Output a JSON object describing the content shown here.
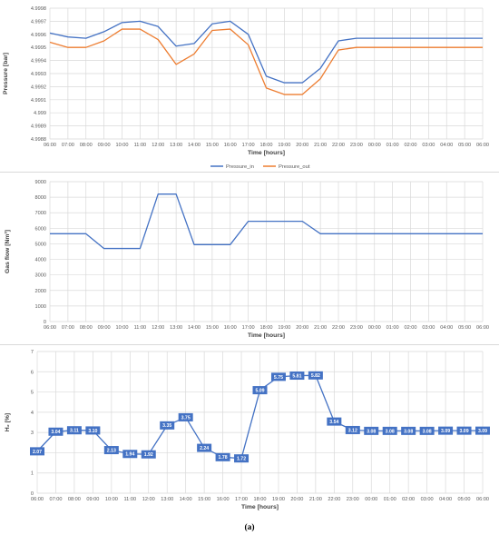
{
  "figure": {
    "caption": "(a)"
  },
  "x_ticks": [
    "06:00",
    "07:00",
    "08:00",
    "09:00",
    "10:00",
    "11:00",
    "12:00",
    "13:00",
    "14:00",
    "15:00",
    "16:00",
    "17:00",
    "18:00",
    "19:00",
    "20:00",
    "21:00",
    "22:00",
    "23:00",
    "00:00",
    "01:00",
    "02:00",
    "03:00",
    "04:00",
    "05:00",
    "06:00"
  ],
  "chart_data": [
    {
      "type": "line",
      "xlabel": "Time [hours]",
      "ylabel": "Pressure [bar]",
      "ylim": [
        4.9988,
        4.9998
      ],
      "yticks": [
        "4.9988",
        "4.9989",
        "4.999",
        "4.9991",
        "4.9992",
        "4.9993",
        "4.9994",
        "4.9995",
        "4.9996",
        "4.9997",
        "4.9998"
      ],
      "grid": true,
      "legend": "bottom",
      "x": [
        0,
        1,
        2,
        3,
        4,
        5,
        6,
        7,
        8,
        9,
        10,
        11,
        12,
        13,
        14,
        15,
        16,
        17,
        18,
        19,
        20,
        21,
        22,
        23,
        24
      ],
      "series": [
        {
          "name": "Pressure_in",
          "color": "#4472c4",
          "values": [
            4.99961,
            4.99958,
            4.99957,
            4.99962,
            4.99969,
            4.9997,
            4.99966,
            4.99951,
            4.99953,
            4.99968,
            4.9997,
            4.9996,
            4.99928,
            4.99923,
            4.99923,
            4.99934,
            4.99955,
            4.99957,
            4.99957,
            4.99957,
            4.99957,
            4.99957,
            4.99957,
            4.99957,
            4.99957
          ]
        },
        {
          "name": "Pressure_out",
          "color": "#ed7d31",
          "values": [
            4.99954,
            4.9995,
            4.9995,
            4.99955,
            4.99964,
            4.99964,
            4.99956,
            4.99937,
            4.99945,
            4.99963,
            4.99964,
            4.99952,
            4.99919,
            4.99914,
            4.99914,
            4.99926,
            4.99948,
            4.9995,
            4.9995,
            4.9995,
            4.9995,
            4.9995,
            4.9995,
            4.9995,
            4.9995
          ]
        }
      ]
    },
    {
      "type": "line",
      "xlabel": "Time [hours]",
      "ylabel": "Gas flow [Nm³]",
      "ylim": [
        0,
        9000
      ],
      "yticks": [
        "0",
        "1000",
        "2000",
        "3000",
        "4000",
        "5000",
        "6000",
        "7000",
        "8000",
        "9000"
      ],
      "grid": true,
      "x": [
        0,
        1,
        2,
        3,
        4,
        5,
        6,
        7,
        8,
        9,
        10,
        11,
        12,
        13,
        14,
        15,
        16,
        17,
        18,
        19,
        20,
        21,
        22,
        23,
        24
      ],
      "series": [
        {
          "color": "#4472c4",
          "values": [
            5650,
            5650,
            5650,
            4700,
            4700,
            4700,
            8200,
            8200,
            4950,
            4950,
            4950,
            6450,
            6450,
            6450,
            6450,
            5650,
            5650,
            5650,
            5650,
            5650,
            5650,
            5650,
            5650,
            5650,
            5650
          ]
        }
      ]
    },
    {
      "type": "line",
      "xlabel": "Time [hours]",
      "ylabel": "H₂ [%]",
      "ylim": [
        0,
        7
      ],
      "yticks": [
        "0",
        "1",
        "2",
        "3",
        "4",
        "5",
        "6",
        "7"
      ],
      "grid": true,
      "x": [
        0,
        1,
        2,
        3,
        4,
        5,
        6,
        7,
        8,
        9,
        10,
        11,
        12,
        13,
        14,
        15,
        16,
        17,
        18,
        19,
        20,
        21,
        22,
        23,
        24
      ],
      "series": [
        {
          "color": "#4472c4",
          "values": [
            2.07,
            3.04,
            3.11,
            3.1,
            2.13,
            1.94,
            1.92,
            3.35,
            3.75,
            2.24,
            1.78,
            1.72,
            5.09,
            5.75,
            5.81,
            5.82,
            3.54,
            3.12,
            3.08,
            3.08,
            3.08,
            3.08,
            3.09,
            3.09,
            3.09
          ],
          "data_labels": [
            "2.07",
            "3.04",
            "3.11",
            "3.10",
            "2.13",
            "1.94",
            "1.92",
            "3.35",
            "3.75",
            "2.24",
            "1.78",
            "1.72",
            "5.09",
            "5.75",
            "5.81",
            "5.82",
            "3.54",
            "3.12",
            "3.08",
            "3.08",
            "3.08",
            "3.08",
            "3.09",
            "3.09",
            "3.09"
          ]
        }
      ]
    }
  ]
}
